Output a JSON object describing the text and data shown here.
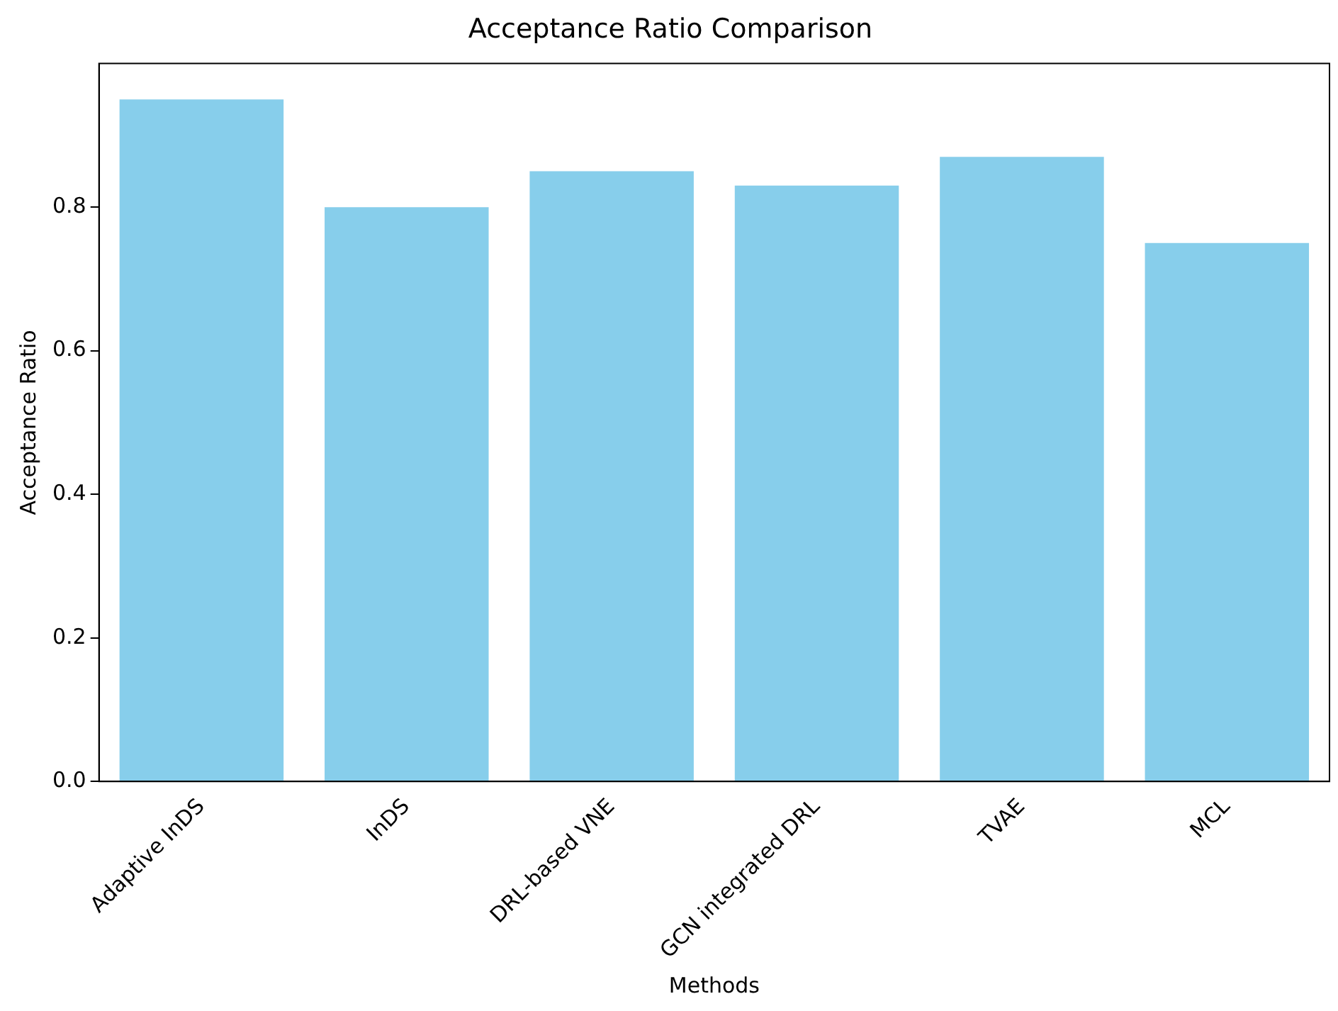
{
  "chart_data": {
    "type": "bar",
    "title": "Acceptance Ratio Comparison",
    "xlabel": "Methods",
    "ylabel": "Acceptance Ratio",
    "categories": [
      "Adaptive InDS",
      "InDS",
      "DRL-based VNE",
      "GCN integrated DRL",
      "TVAE",
      "MCL"
    ],
    "values": [
      0.95,
      0.8,
      0.85,
      0.83,
      0.87,
      0.75
    ],
    "color": "#87ceeb",
    "ylim": [
      0,
      1.0
    ],
    "yticks": [
      {
        "value": 0,
        "label": "0.0"
      },
      {
        "value": 0.2,
        "label": "0.2"
      },
      {
        "value": 0.4,
        "label": "0.4"
      },
      {
        "value": 0.6,
        "label": "0.6"
      },
      {
        "value": 0.8,
        "label": "0.8"
      }
    ],
    "grid": false,
    "legend": false
  }
}
